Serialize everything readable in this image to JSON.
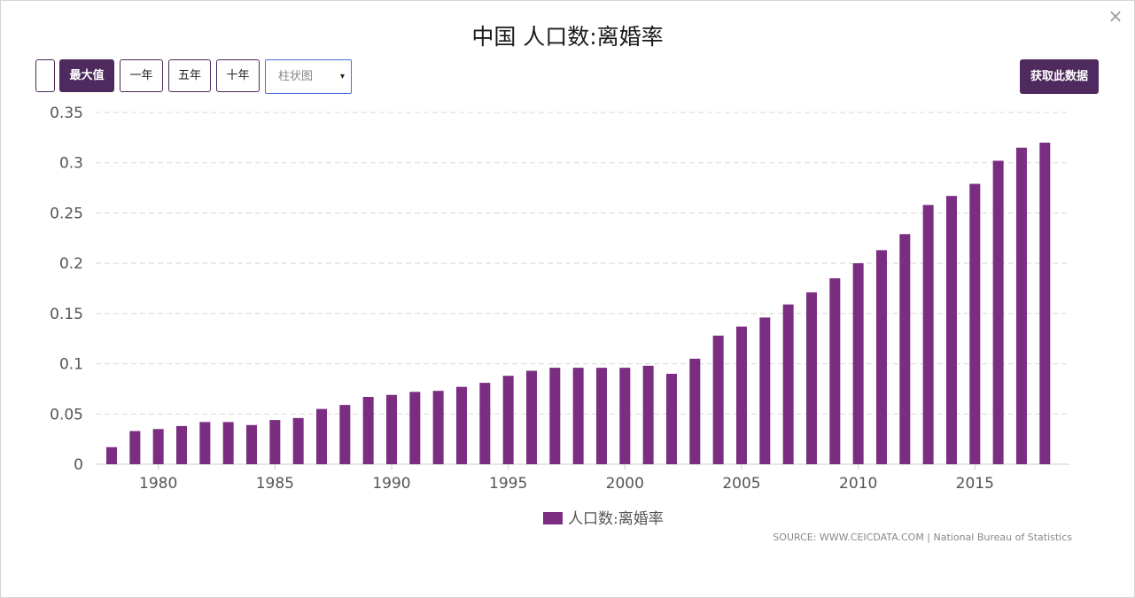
{
  "title": "中国 人口数:离婚率",
  "close_icon": "×",
  "toolbar": {
    "blank_label": "",
    "max_label": "最大值",
    "one_year_label": "一年",
    "five_year_label": "五年",
    "ten_year_label": "十年",
    "chart_type_value": "柱状图",
    "chart_type_arrow": "▾",
    "get_data_label": "获取此数据"
  },
  "legend": {
    "label": "人口数:离婚率"
  },
  "source": "SOURCE: WWW.CEICDATA.COM | National Bureau of Statistics",
  "colors": {
    "bar": "#7b2d82",
    "accent": "#4f2a5e"
  },
  "chart_data": {
    "type": "bar",
    "legend_position": "bottom",
    "grid": true,
    "ylim": [
      0,
      0.35
    ],
    "yticks": [
      0,
      0.05,
      0.1,
      0.15,
      0.2,
      0.25,
      0.3,
      0.35
    ],
    "ytick_labels": [
      "0",
      "0.05",
      "0.1",
      "0.15",
      "0.2",
      "0.25",
      "0.3",
      "0.35"
    ],
    "xticks": [
      1980,
      1985,
      1990,
      1995,
      2000,
      2005,
      2010,
      2015
    ],
    "xtick_labels": [
      "1980",
      "1985",
      "1990",
      "1995",
      "2000",
      "2005",
      "2010",
      "2015"
    ],
    "series": [
      {
        "name": "人口数:离婚率",
        "x": [
          1978,
          1979,
          1980,
          1981,
          1982,
          1983,
          1984,
          1985,
          1986,
          1987,
          1988,
          1989,
          1990,
          1991,
          1992,
          1993,
          1994,
          1995,
          1996,
          1997,
          1998,
          1999,
          2000,
          2001,
          2002,
          2003,
          2004,
          2005,
          2006,
          2007,
          2008,
          2009,
          2010,
          2011,
          2012,
          2013,
          2014,
          2015,
          2016,
          2017,
          2018
        ],
        "values": [
          0.017,
          0.033,
          0.035,
          0.038,
          0.042,
          0.042,
          0.039,
          0.044,
          0.046,
          0.055,
          0.059,
          0.067,
          0.069,
          0.072,
          0.073,
          0.077,
          0.081,
          0.088,
          0.093,
          0.096,
          0.096,
          0.096,
          0.096,
          0.098,
          0.09,
          0.105,
          0.128,
          0.137,
          0.146,
          0.159,
          0.171,
          0.185,
          0.2,
          0.213,
          0.229,
          0.258,
          0.267,
          0.279,
          0.302,
          0.315,
          0.32
        ]
      }
    ]
  }
}
